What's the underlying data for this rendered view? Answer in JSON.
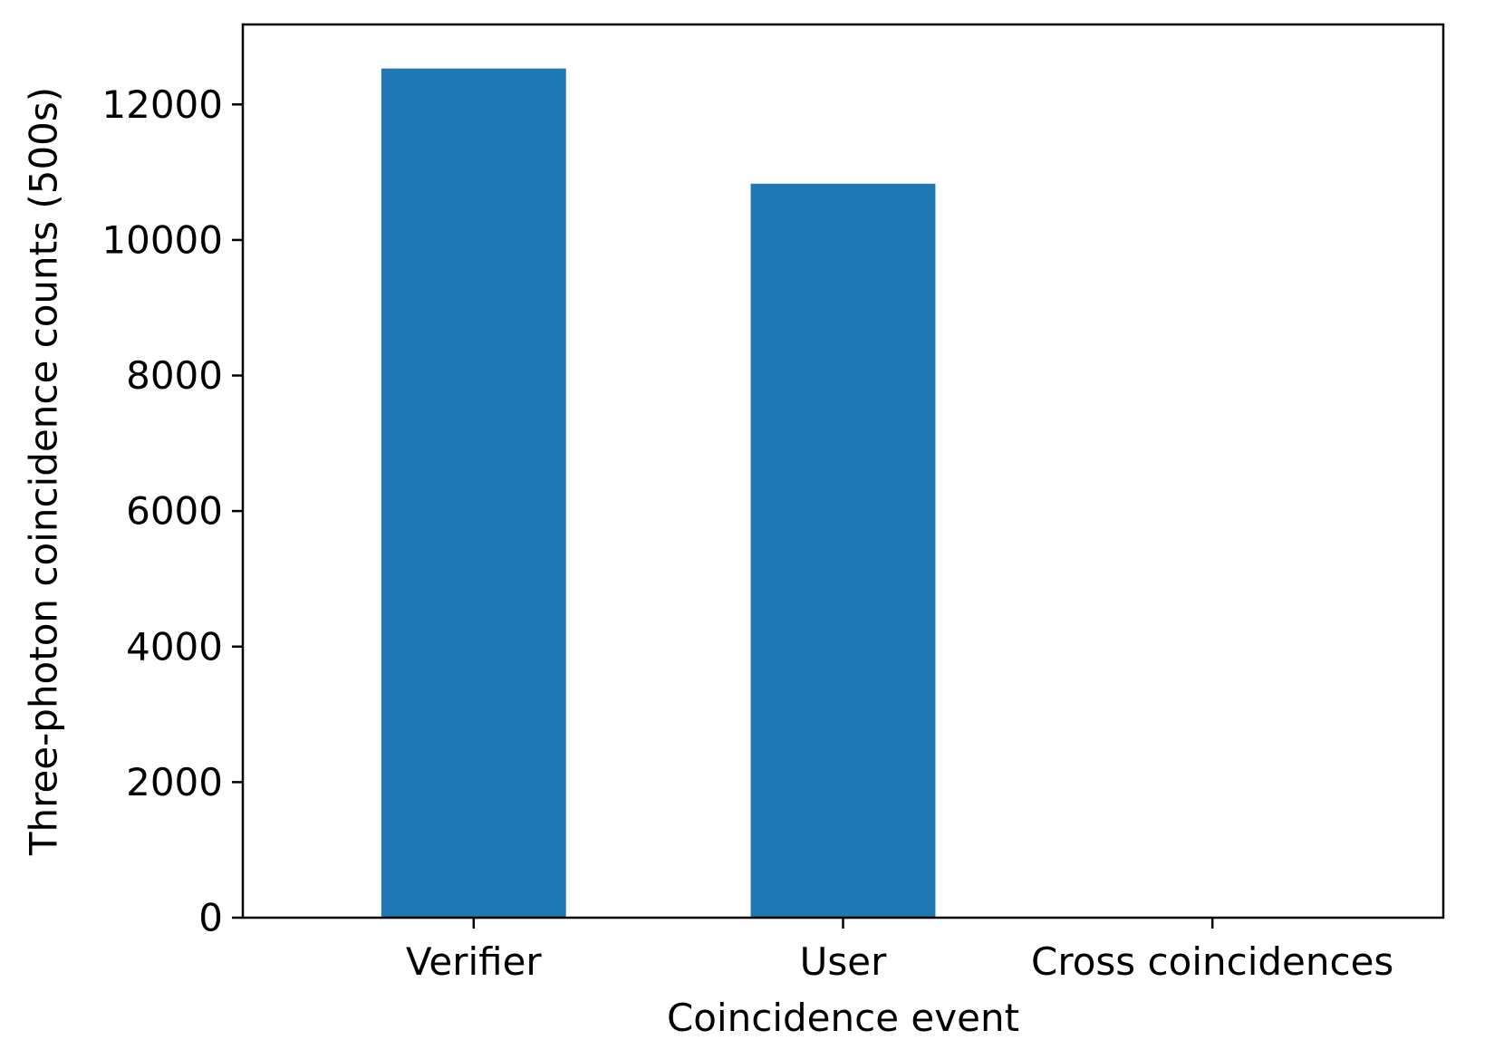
{
  "chart_data": {
    "type": "bar",
    "categories": [
      "Verifier",
      "User",
      "Cross coincidences"
    ],
    "values": [
      12530,
      10830,
      0
    ],
    "xlabel": "Coincidence event",
    "ylabel": "Three-photon coincidence counts (500s)",
    "ylim": [
      0,
      13180
    ],
    "yticks": [
      0,
      2000,
      4000,
      6000,
      8000,
      10000,
      12000
    ],
    "ytick_labels": [
      "0",
      "2000",
      "4000",
      "6000",
      "8000",
      "10000",
      "12000"
    ],
    "bar_color": "#1f77b4",
    "grid": false,
    "legend": "none"
  }
}
